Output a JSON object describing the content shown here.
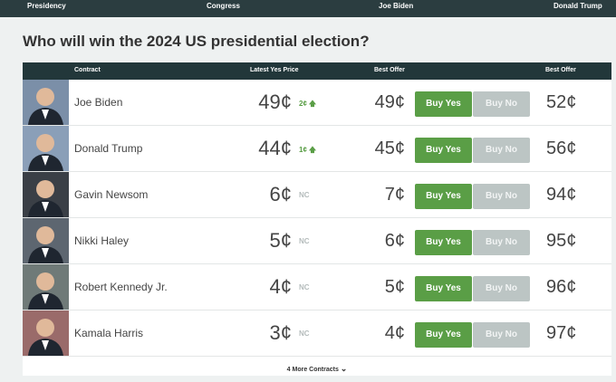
{
  "nav": [
    "Presidency",
    "Congress",
    "Joe Biden",
    "Donald Trump"
  ],
  "title": "Who will win the 2024 US presidential election?",
  "table": {
    "headers": [
      "Contract",
      "Latest Yes Price",
      "Best Offer",
      "Best Offer"
    ],
    "buttons": {
      "buy_yes": "Buy Yes",
      "buy_no": "Buy No"
    },
    "rows": [
      {
        "name": "Joe Biden",
        "price": "49¢",
        "change": "2¢",
        "change_dir": "up",
        "yes_offer": "49¢",
        "no_offer": "52¢"
      },
      {
        "name": "Donald Trump",
        "price": "44¢",
        "change": "1¢",
        "change_dir": "up",
        "yes_offer": "45¢",
        "no_offer": "56¢"
      },
      {
        "name": "Gavin Newsom",
        "price": "6¢",
        "change": "NC",
        "change_dir": "none",
        "yes_offer": "7¢",
        "no_offer": "94¢"
      },
      {
        "name": "Nikki Haley",
        "price": "5¢",
        "change": "NC",
        "change_dir": "none",
        "yes_offer": "6¢",
        "no_offer": "95¢"
      },
      {
        "name": "Robert Kennedy Jr.",
        "price": "4¢",
        "change": "NC",
        "change_dir": "none",
        "yes_offer": "5¢",
        "no_offer": "96¢"
      },
      {
        "name": "Kamala Harris",
        "price": "3¢",
        "change": "NC",
        "change_dir": "none",
        "yes_offer": "4¢",
        "no_offer": "97¢"
      }
    ],
    "more": "4 More Contracts"
  }
}
